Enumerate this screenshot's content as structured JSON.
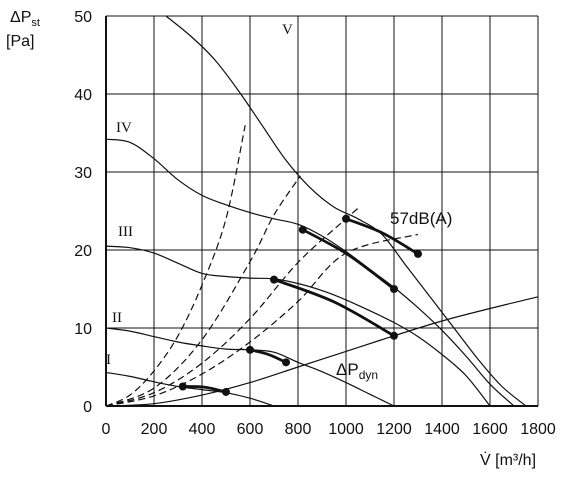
{
  "chart_data": {
    "type": "line",
    "title": "",
    "ylabel": {
      "main": "ΔP",
      "sub": "st",
      "unit": "[Pa]"
    },
    "xlabel": "V̇ [m³/h]",
    "xlim": [
      0,
      1800
    ],
    "ylim": [
      0,
      50
    ],
    "x_ticks": [
      "0",
      "200",
      "400",
      "600",
      "800",
      "1000",
      "1200",
      "1400",
      "1600",
      "1800"
    ],
    "y_ticks": [
      "0",
      "10",
      "20",
      "30",
      "40",
      "50"
    ],
    "grid": true,
    "fan_curves": [
      {
        "name": "I",
        "points": [
          [
            0,
            4.3
          ],
          [
            100,
            3.8
          ],
          [
            200,
            3.1
          ],
          [
            300,
            2.5
          ],
          [
            400,
            2.1
          ],
          [
            500,
            1.7
          ],
          [
            600,
            1.0
          ],
          [
            700,
            0
          ]
        ]
      },
      {
        "name": "II",
        "points": [
          [
            0,
            10.0
          ],
          [
            100,
            9.6
          ],
          [
            200,
            8.9
          ],
          [
            300,
            8.2
          ],
          [
            400,
            7.7
          ],
          [
            500,
            7.3
          ],
          [
            600,
            7.2
          ],
          [
            700,
            6.9
          ],
          [
            800,
            5.6
          ],
          [
            900,
            4.4
          ],
          [
            1000,
            3.0
          ],
          [
            1100,
            1.5
          ],
          [
            1200,
            0
          ]
        ]
      },
      {
        "name": "III",
        "points": [
          [
            0,
            20.5
          ],
          [
            100,
            20.3
          ],
          [
            200,
            19.6
          ],
          [
            300,
            18.3
          ],
          [
            400,
            17.0
          ],
          [
            500,
            16.6
          ],
          [
            600,
            16.4
          ],
          [
            700,
            16.3
          ],
          [
            800,
            15.7
          ],
          [
            900,
            14.8
          ],
          [
            1000,
            13.6
          ],
          [
            1100,
            12.2
          ],
          [
            1200,
            10.7
          ],
          [
            1300,
            8.9
          ],
          [
            1400,
            6.6
          ],
          [
            1500,
            3.9
          ],
          [
            1600,
            0
          ]
        ]
      },
      {
        "name": "IV",
        "points": [
          [
            0,
            34.2
          ],
          [
            100,
            33.8
          ],
          [
            200,
            31.7
          ],
          [
            300,
            29.0
          ],
          [
            400,
            27.0
          ],
          [
            500,
            25.8
          ],
          [
            600,
            24.8
          ],
          [
            700,
            24.0
          ],
          [
            800,
            23.3
          ],
          [
            900,
            21.8
          ],
          [
            1000,
            19.8
          ],
          [
            1100,
            17.5
          ],
          [
            1200,
            15.2
          ],
          [
            1300,
            12.6
          ],
          [
            1400,
            9.7
          ],
          [
            1500,
            6.4
          ],
          [
            1600,
            2.8
          ],
          [
            1700,
            0
          ]
        ]
      },
      {
        "name": "V",
        "points": [
          [
            250,
            50.0
          ],
          [
            350,
            47.5
          ],
          [
            450,
            44.5
          ],
          [
            550,
            40.5
          ],
          [
            650,
            36.0
          ],
          [
            750,
            31.5
          ],
          [
            850,
            28.0
          ],
          [
            950,
            25.5
          ],
          [
            1050,
            24.0
          ],
          [
            1150,
            22.0
          ],
          [
            1250,
            18.0
          ],
          [
            1350,
            14.0
          ],
          [
            1450,
            10.0
          ],
          [
            1550,
            6.0
          ],
          [
            1650,
            2.5
          ],
          [
            1750,
            0
          ]
        ]
      }
    ],
    "system_curves": [
      {
        "points": [
          [
            0,
            0
          ],
          [
            100,
            1.4
          ],
          [
            200,
            4.5
          ],
          [
            300,
            9.0
          ],
          [
            400,
            15.5
          ],
          [
            500,
            24.0
          ],
          [
            580,
            36.0
          ]
        ]
      },
      {
        "points": [
          [
            0,
            0
          ],
          [
            200,
            2.3
          ],
          [
            400,
            8.5
          ],
          [
            600,
            18.5
          ],
          [
            700,
            24.5
          ],
          [
            810,
            29.5
          ]
        ]
      },
      {
        "points": [
          [
            0,
            0
          ],
          [
            200,
            1.7
          ],
          [
            400,
            5.5
          ],
          [
            600,
            11.2
          ],
          [
            800,
            18.4
          ],
          [
            1000,
            24.0
          ],
          [
            1060,
            25.6
          ]
        ]
      },
      {
        "points": [
          [
            0,
            0
          ],
          [
            200,
            1.3
          ],
          [
            400,
            4.1
          ],
          [
            600,
            8.2
          ],
          [
            800,
            13.4
          ],
          [
            1000,
            19.6
          ],
          [
            1300,
            22.0
          ]
        ]
      }
    ],
    "dyn_curve": {
      "label_main": "ΔP",
      "label_sub": "dyn",
      "points": [
        [
          0,
          0
        ],
        [
          200,
          0.3
        ],
        [
          400,
          1.4
        ],
        [
          600,
          3.0
        ],
        [
          800,
          5.0
        ],
        [
          1000,
          7.0
        ],
        [
          1200,
          9.0
        ],
        [
          1400,
          10.9
        ],
        [
          1600,
          12.5
        ],
        [
          1800,
          14.0
        ]
      ]
    },
    "noise_segments": [
      {
        "points": [
          [
            320,
            2.5
          ],
          [
            500,
            1.8
          ]
        ]
      },
      {
        "points": [
          [
            600,
            7.2
          ],
          [
            750,
            5.6
          ]
        ]
      },
      {
        "points": [
          [
            700,
            16.2
          ],
          [
            1200,
            9.0
          ]
        ]
      },
      {
        "points": [
          [
            820,
            22.6
          ],
          [
            1200,
            15.0
          ]
        ]
      },
      {
        "points": [
          [
            1000,
            24.0
          ],
          [
            1300,
            19.5
          ]
        ]
      }
    ],
    "noise_label": "57dB(A)",
    "points": [
      [
        320,
        2.5
      ],
      [
        500,
        1.8
      ],
      [
        600,
        7.2
      ],
      [
        750,
        5.6
      ],
      [
        700,
        16.2
      ],
      [
        1200,
        9.0
      ],
      [
        820,
        22.6
      ],
      [
        1200,
        15.0
      ],
      [
        1000,
        24.0
      ],
      [
        1300,
        19.5
      ]
    ],
    "colors": {
      "line": "#111111",
      "grid": "#111111",
      "background": "#ffffff"
    }
  }
}
